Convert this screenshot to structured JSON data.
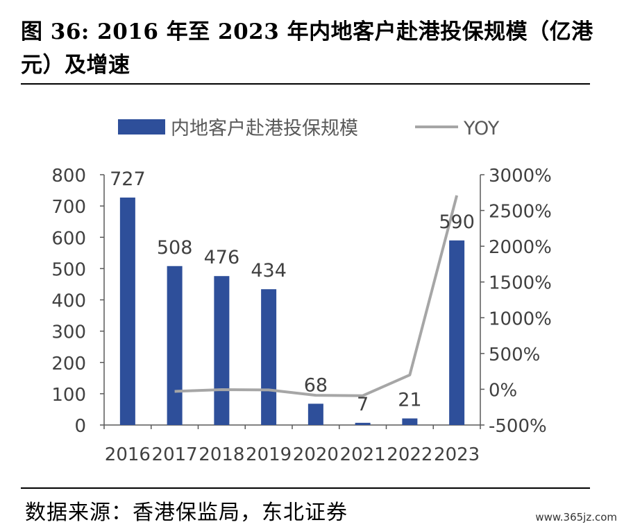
{
  "figure": {
    "title": "图 36: 2016 年至 2023 年内地客户赴港投保规模（亿港元）及增速",
    "source": "数据来源：香港保监局，东北证券",
    "watermark": "www.365jz.com"
  },
  "chart_data": {
    "type": "bar",
    "categories": [
      "2016",
      "2017",
      "2018",
      "2019",
      "2020",
      "2021",
      "2022",
      "2023"
    ],
    "series": [
      {
        "name": "内地客户赴港投保规模",
        "kind": "bar",
        "axis": "left",
        "color": "#2E4F9A",
        "values": [
          727,
          508,
          476,
          434,
          68,
          7,
          21,
          590
        ],
        "labels": [
          "727",
          "508",
          "476",
          "434",
          "68",
          "7",
          "21",
          "590"
        ]
      },
      {
        "name": "YOY",
        "kind": "line",
        "axis": "right",
        "color": "#A6A6A6",
        "values": [
          null,
          -30,
          -6,
          -9,
          -84,
          -90,
          200,
          2710
        ]
      }
    ],
    "y_left": {
      "min": 0,
      "max": 800,
      "ticks": [
        0,
        100,
        200,
        300,
        400,
        500,
        600,
        700,
        800
      ],
      "tick_labels": [
        "0",
        "100",
        "200",
        "300",
        "400",
        "500",
        "600",
        "700",
        "800"
      ]
    },
    "y_right": {
      "min": -500,
      "max": 3000,
      "ticks": [
        -500,
        0,
        500,
        1000,
        1500,
        2000,
        2500,
        3000
      ],
      "tick_labels": [
        "-500%",
        "0%",
        "500%",
        "1000%",
        "1500%",
        "2000%",
        "2500%",
        "3000%"
      ]
    },
    "grid": false,
    "legend_position": "top"
  }
}
